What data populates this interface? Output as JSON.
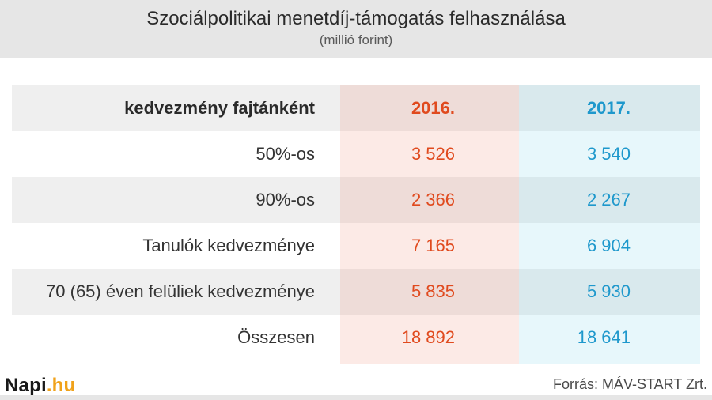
{
  "title": "Szociálpolitikai menetdíj-támogatás felhasználása",
  "subtitle": "(millió forint)",
  "logo": {
    "part1": "Napi",
    "part2": ".hu"
  },
  "source": "Forrás: MÁV-START Zrt.",
  "colors": {
    "y2016": "#e04a1e",
    "y2017": "#1e98cc",
    "logo_accent": "#f0a21a"
  },
  "chart_data": {
    "type": "table",
    "columns": [
      "kedvezmény fajtánként",
      "2016.",
      "2017."
    ],
    "rows": [
      {
        "label": "50%-os",
        "v2016": "3 526",
        "v2017": "3 540"
      },
      {
        "label": "90%-os",
        "v2016": "2 366",
        "v2017": "2 267"
      },
      {
        "label": "Tanulók kedvezménye",
        "v2016": "7 165",
        "v2017": "6 904"
      },
      {
        "label": "70 (65) éven felüliek kedvezménye",
        "v2016": "5 835",
        "v2017": "5 930"
      },
      {
        "label": "Összesen",
        "v2016": "18 892",
        "v2017": "18 641"
      }
    ]
  }
}
